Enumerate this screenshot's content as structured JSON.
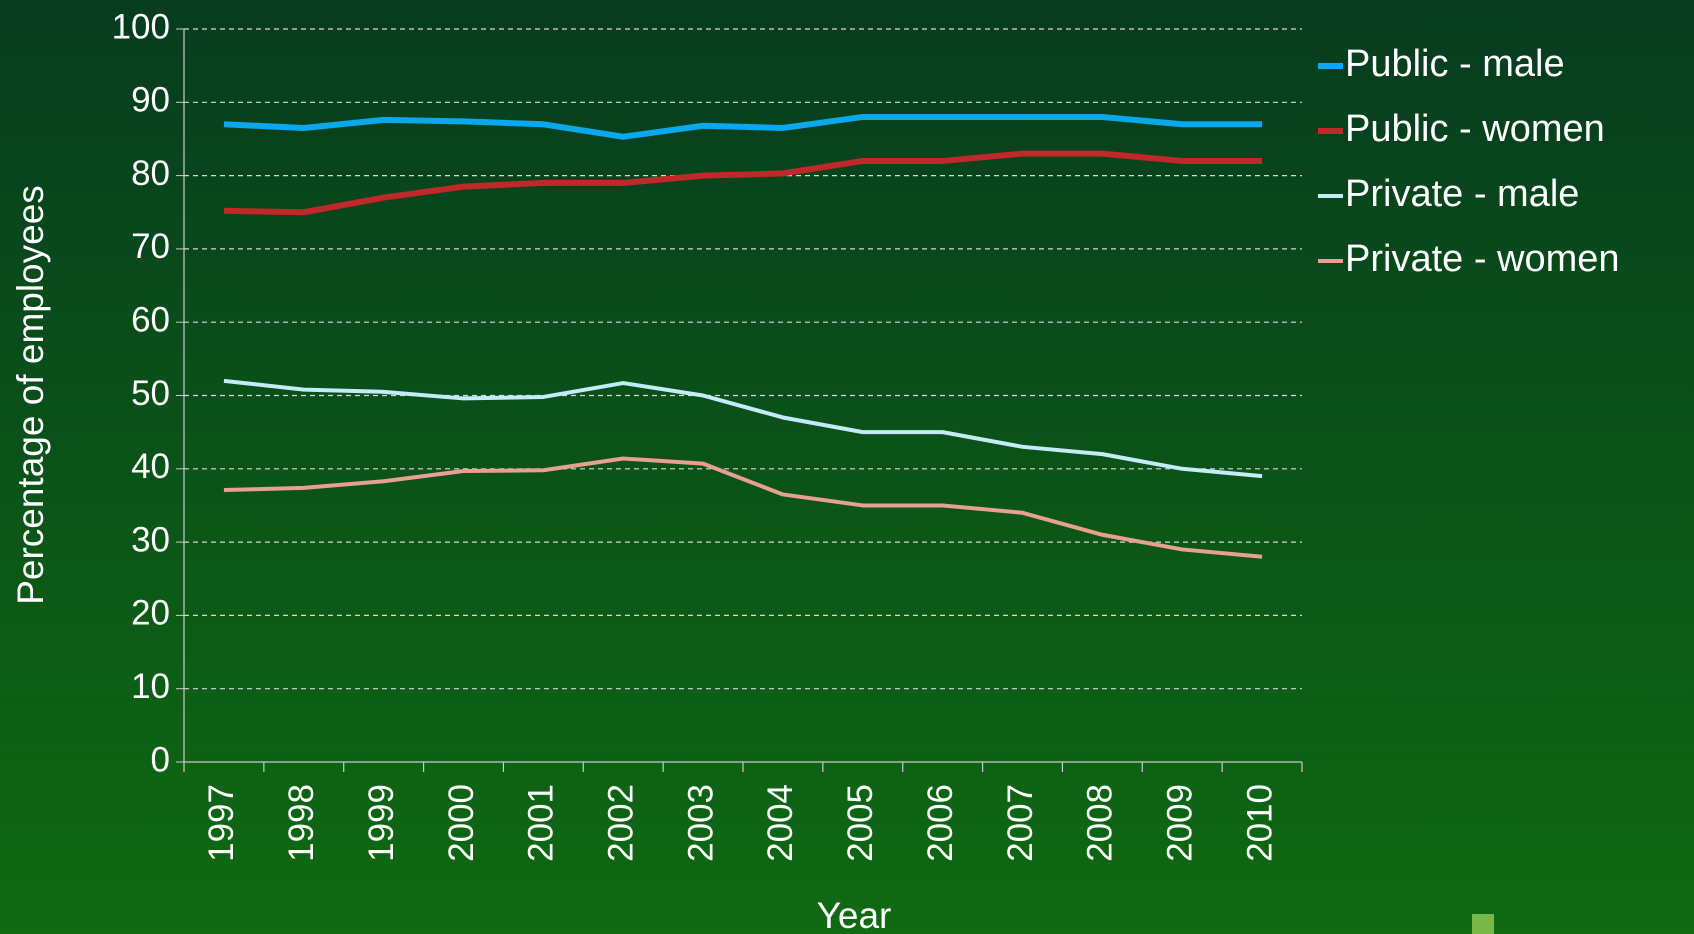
{
  "chart_data": {
    "type": "line",
    "x_label": "Year",
    "y_label": "Percentage of employees",
    "categories": [
      "1997",
      "1998",
      "1999",
      "2000",
      "2001",
      "2002",
      "2003",
      "2004",
      "2005",
      "2006",
      "2007",
      "2008",
      "2009",
      "2010"
    ],
    "series": [
      {
        "name": "Public - male",
        "color": "#0aa8ec",
        "values": [
          87,
          86.5,
          87.6,
          87.4,
          87,
          85.3,
          86.8,
          86.5,
          88,
          88,
          88,
          88,
          87,
          87
        ]
      },
      {
        "name": "Public - women",
        "color": "#c0282a",
        "values": [
          75.2,
          75,
          77,
          78.5,
          79,
          79,
          80,
          80.3,
          82,
          82,
          83,
          83,
          82,
          82
        ]
      },
      {
        "name": "Private - male",
        "color": "#c4ecf8",
        "values": [
          52,
          50.8,
          50.5,
          49.6,
          49.8,
          51.7,
          50,
          47,
          45,
          45,
          43,
          42,
          40,
          39
        ]
      },
      {
        "name": "Private - women",
        "color": "#e8a090",
        "values": [
          37.1,
          37.4,
          38.3,
          39.7,
          39.8,
          41.4,
          40.7,
          36.5,
          35,
          35,
          34,
          31,
          29,
          28
        ]
      }
    ],
    "ylim": [
      0,
      100
    ],
    "yticks": [
      0,
      10,
      20,
      30,
      40,
      50,
      60,
      70,
      80,
      90,
      100
    ],
    "grid": true,
    "legend": "right"
  }
}
